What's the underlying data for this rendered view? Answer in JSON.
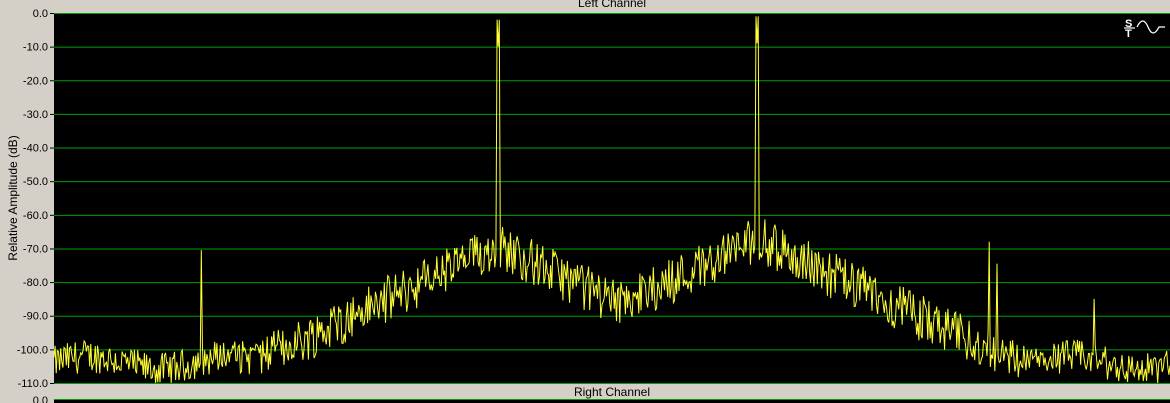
{
  "left_panel": {
    "title": "Left Channel"
  },
  "right_panel": {
    "title": "Right Channel",
    "first_tick": "0.0"
  },
  "icons": {
    "signal": "sine-wave-icon"
  },
  "colors": {
    "plot_background": "#000000",
    "grid": "#00a000",
    "trace": "#ffff33",
    "frame": "#d4d0c8"
  },
  "chart_data": {
    "type": "line",
    "title": "Left Channel",
    "xlabel": "",
    "ylabel": "Relative Amplitude (dB)",
    "ylim": [
      -110,
      0
    ],
    "xlim": [
      0,
      1000
    ],
    "grid": true,
    "yticks": [
      "0.0",
      "-10.0",
      "-20.0",
      "-30.0",
      "-40.0",
      "-50.0",
      "-60.0",
      "-70.0",
      "-80.0",
      "-90.0",
      "-100.0",
      "-110.0"
    ],
    "noise_floor_db": -104,
    "peaks": [
      {
        "x": 132,
        "db": -70.5,
        "width": 0.6
      },
      {
        "x": 398,
        "db": -10,
        "width": 1.2,
        "skirt_db": -72
      },
      {
        "x": 630,
        "db": -9,
        "width": 1.2,
        "skirt_db": -70
      },
      {
        "x": 838,
        "db": -68,
        "width": 0.6
      },
      {
        "x": 845,
        "db": -74.5,
        "width": 0.6
      },
      {
        "x": 932,
        "db": -85,
        "width": 0.6
      }
    ]
  }
}
